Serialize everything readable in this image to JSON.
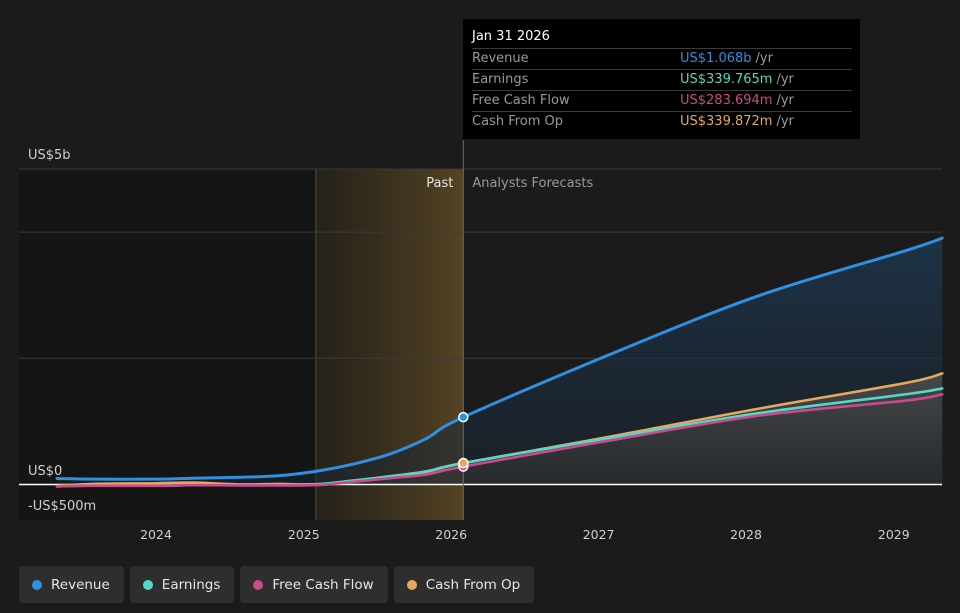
{
  "chart_data": {
    "type": "area",
    "y_axis": {
      "top_label": "US$5b",
      "zero_label": "US$0",
      "bottom_label": "-US$500m",
      "ylim": [
        -500,
        5000
      ],
      "unit": "US$m"
    },
    "x_ticks": [
      "2024",
      "2025",
      "2026",
      "2027",
      "2028",
      "2029"
    ],
    "past_label": "Past",
    "forecast_label": "Analysts Forecasts",
    "series": [
      {
        "name": "Revenue",
        "color": "#2f8fe0",
        "x": [
          "2023-05-01",
          "2023-08-01",
          "2024-01-01",
          "2024-04-01",
          "2024-08-01",
          "2024-11-01",
          "2025-02-01",
          "2025-05-01",
          "2025-08-01",
          "2025-11-01",
          "2026-01-31",
          "2027-01-31",
          "2028-01-31",
          "2029-01-31",
          "2029-05-01"
        ],
        "values": [
          95,
          85,
          85,
          100,
          115,
          140,
          210,
          320,
          480,
          730,
          1068,
          2066,
          2988,
          3707,
          3905
        ]
      },
      {
        "name": "Earnings",
        "color": "#55d6c6",
        "x": [
          "2023-05-01",
          "2023-08-01",
          "2024-01-01",
          "2024-04-01",
          "2024-08-01",
          "2024-11-01",
          "2025-02-01",
          "2025-05-01",
          "2025-08-01",
          "2025-11-01",
          "2026-01-31",
          "2027-01-31",
          "2028-01-31",
          "2029-01-31",
          "2029-05-01"
        ],
        "values": [
          -30,
          -20,
          -20,
          -10,
          0,
          0,
          5,
          60,
          130,
          210,
          340,
          740,
          1130,
          1430,
          1522
        ]
      },
      {
        "name": "Free Cash Flow",
        "color": "#c84b8c",
        "x": [
          "2023-05-01",
          "2023-08-01",
          "2024-01-01",
          "2024-04-01",
          "2024-08-01",
          "2024-11-01",
          "2025-02-01",
          "2025-05-01",
          "2025-08-01",
          "2025-11-01",
          "2026-01-31",
          "2027-01-31",
          "2028-01-31",
          "2029-01-31",
          "2029-05-01"
        ],
        "values": [
          -30,
          -20,
          -20,
          -10,
          -15,
          -15,
          -10,
          40,
          100,
          160,
          284,
          700,
          1090,
          1330,
          1430
        ]
      },
      {
        "name": "Cash From Op",
        "color": "#e6a85a",
        "x": [
          "2023-05-01",
          "2023-08-01",
          "2024-01-01",
          "2024-04-01",
          "2024-08-01",
          "2024-11-01",
          "2025-02-01",
          "2025-05-01",
          "2025-08-01",
          "2025-11-01",
          "2026-01-31",
          "2027-01-31",
          "2028-01-31",
          "2029-01-31",
          "2029-05-01"
        ],
        "values": [
          -20,
          10,
          20,
          30,
          0,
          10,
          0,
          60,
          120,
          200,
          340,
          760,
          1200,
          1610,
          1760
        ]
      }
    ],
    "highlight": {
      "date": "2026-01-31",
      "shaded_from": "2025-01-31"
    }
  },
  "tooltip": {
    "date": "Jan 31 2026",
    "rows": [
      {
        "label": "Revenue",
        "value": "US$1.068b",
        "unit": "/yr",
        "color": "#2f8fe0"
      },
      {
        "label": "Earnings",
        "value": "US$339.765m",
        "unit": "/yr",
        "color": "#55d6c6"
      },
      {
        "label": "Free Cash Flow",
        "value": "US$283.694m",
        "unit": "/yr",
        "color": "#c84b8c"
      },
      {
        "label": "Cash From Op",
        "value": "US$339.872m",
        "unit": "/yr",
        "color": "#e6a85a"
      }
    ]
  },
  "legend": [
    {
      "label": "Revenue",
      "color": "#2f8fe0"
    },
    {
      "label": "Earnings",
      "color": "#55d6c6"
    },
    {
      "label": "Free Cash Flow",
      "color": "#c84b8c"
    },
    {
      "label": "Cash From Op",
      "color": "#e6a85a"
    }
  ]
}
